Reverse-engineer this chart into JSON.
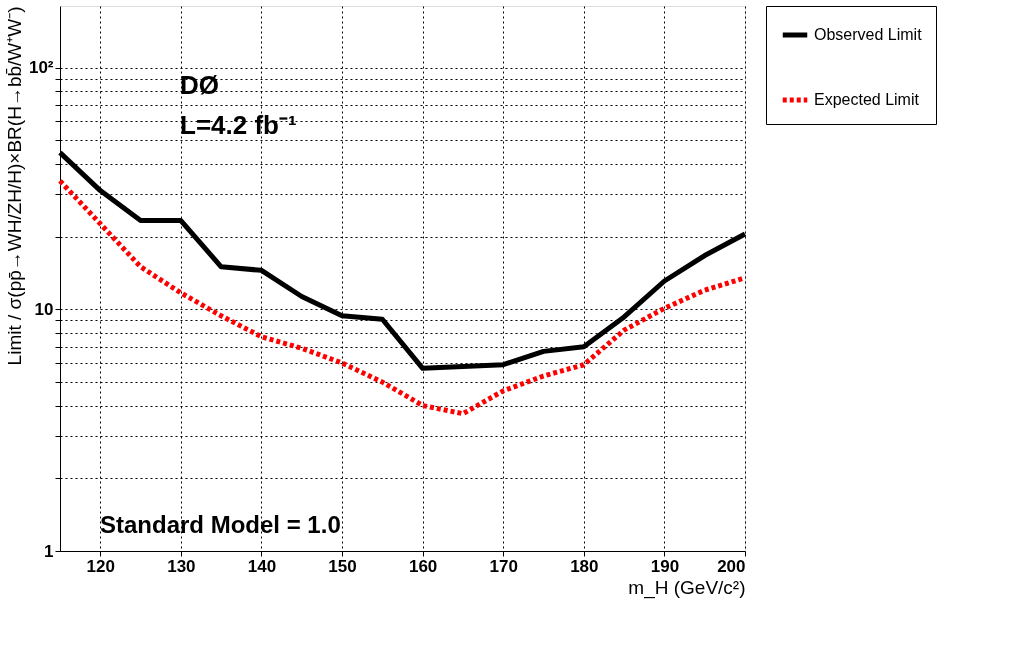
{
  "chart_data": {
    "type": "line",
    "xlabel": "m_H (GeV/c²)",
    "ylabel": "Limit / σ(pp̄→WH/ZH/H)×BR(H→bb̄/W⁺W⁻)",
    "x": [
      115,
      120,
      125,
      130,
      135,
      140,
      145,
      150,
      155,
      160,
      165,
      170,
      175,
      180,
      185,
      190,
      195,
      200
    ],
    "series": [
      {
        "name": "Observed Limit",
        "color": "#000000",
        "line_style": "solid",
        "values": [
          44.5,
          31,
          23.3,
          23.3,
          15,
          14.5,
          11.3,
          9.4,
          9.1,
          5.7,
          5.8,
          5.9,
          6.7,
          7.0,
          9.3,
          13.1,
          16.7,
          20.5
        ]
      },
      {
        "name": "Expected Limit",
        "color": "#ff0000",
        "line_style": "dotted",
        "values": [
          34,
          22.6,
          15,
          11.7,
          9.4,
          7.7,
          6.9,
          6.0,
          5.0,
          4.0,
          3.7,
          4.6,
          5.3,
          5.9,
          8.2,
          10.1,
          12.0,
          13.5
        ]
      }
    ],
    "log": "y",
    "xlim": [
      115,
      200
    ],
    "ylim": [
      1,
      180
    ],
    "xticks": [
      120,
      130,
      140,
      150,
      160,
      170,
      180,
      190,
      200
    ],
    "yticks": [
      1,
      {
        "value": 2,
        "label": null
      },
      {
        "value": 3,
        "label": null
      },
      {
        "value": 4,
        "label": null
      },
      {
        "value": 5,
        "label": null
      },
      {
        "value": 6,
        "label": null
      },
      {
        "value": 7,
        "label": null
      },
      {
        "value": 8,
        "label": null
      },
      {
        "value": 9,
        "label": null
      },
      10,
      {
        "value": 20,
        "label": null
      },
      {
        "value": 30,
        "label": null
      },
      {
        "value": 40,
        "label": null
      },
      {
        "value": 50,
        "label": null
      },
      {
        "value": 60,
        "label": null
      },
      {
        "value": 70,
        "label": null
      },
      {
        "value": 80,
        "label": null
      },
      {
        "value": 90,
        "label": null
      },
      {
        "value": 100,
        "label": "10²"
      }
    ],
    "grid": true,
    "legend": "top right",
    "annotations": [
      "DØ",
      "L=4.2 fb⁻¹",
      "Standard Model = 1.0"
    ]
  }
}
